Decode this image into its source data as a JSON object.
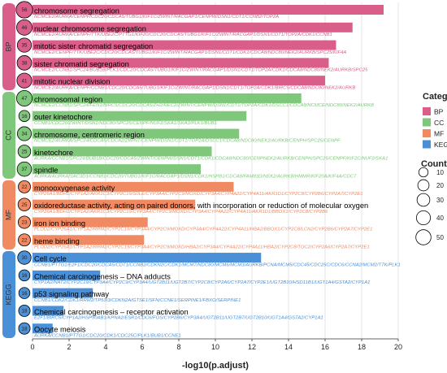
{
  "chart_data": {
    "type": "bar",
    "orientation": "horizontal",
    "xlabel": "-log10(p.adjust)",
    "ylabel": "",
    "xlim": [
      0,
      20
    ],
    "x_ticks": [
      "0",
      "2",
      "4",
      "6",
      "8",
      "10",
      "12",
      "14",
      "16",
      "18",
      "20"
    ],
    "grid": true,
    "legend_position": "right",
    "colors": {
      "BP": "#d95f8a",
      "CC": "#7fc77a",
      "MF": "#f08a63",
      "KEGG": "#4a90d9"
    },
    "categories": [
      {
        "name": "BP",
        "label": "BP",
        "legend_label": "BP",
        "color": "#d95f8a"
      },
      {
        "name": "CC",
        "label": "CC",
        "legend_label": "CC",
        "color": "#7fc77a"
      },
      {
        "name": "MF",
        "label": "MF",
        "legend_label": "MF",
        "color": "#f08a63"
      },
      {
        "name": "KEGG",
        "label": "KEGG",
        "legend_label": "KEGG",
        "color": "#4a90d9"
      }
    ],
    "legend": {
      "category_title": "Category",
      "count_title": "Count",
      "count_values": [
        10,
        20,
        30,
        40,
        50
      ]
    },
    "terms": [
      {
        "category": "BP",
        "term": "chromosome segregation",
        "value": 19.2,
        "count": 56,
        "count_label": "56",
        "genes": "NCMCE2/AURKA/CENPF/CDC20/CDCA5/TUBG1/KIF1C/ZWINT/RACGAP1/CENPW/DSN1/CDT1/CCNB2/TOP2A"
      },
      {
        "category": "BP",
        "term": "nuclear chromosome segregation",
        "value": 17.5,
        "count": 46,
        "count_label": "46",
        "genes": "NCMCE2/AURKA/CENPF/TTK/UBE2C/PTTG1/KIF20/CDC20/CDCA5/TUBG1/KIF1C/ZWINT/RACGAP1/DSN1/CDT1/TOP2A/CDK1/CCNB1"
      },
      {
        "category": "BP",
        "term": "mitotic sister chromatid segregation",
        "value": 16.6,
        "count": 35,
        "count_label": "35",
        "genes": "NCMCE2/CENPF/TTK/UBE2C/CDC20/CDCA5/TUBG1/KIF1C/ZWINT/RACGAP1/DSN1/CDT1/CDK1/CDCA8/NDC80/NEK2/AURKB/SPC25/KIF4A"
      },
      {
        "category": "BP",
        "term": "sister chromatid segregation",
        "value": 16.2,
        "count": 38,
        "count_label": "38",
        "genes": "NCMCE2/CCNB1/SPC24/BUB1B/PLK1/CDC20/CDCA5/TUBG1/KIF1C/ZWINT/RACGAP1/DSN1/CDT1/TOP2A/CDK1/CDCA8/NDC80/NEK2/AURKB/SPC25"
      },
      {
        "category": "BP",
        "term": "mitotic nuclear division",
        "value": 16.0,
        "count": 41,
        "count_label": "41",
        "genes": "NCMCE2/AURKA/CENPF/CCNB1/CDC20/CDCA5/TUBG1/KIF1C/ZWINT/RACGAP1/DSN1/CDT1/TOP2A/CDK1/BIRC5/CDCA8/NDC80/NEK2/AURKB"
      },
      {
        "category": "CC",
        "term": "chromosomal region",
        "value": 14.7,
        "count": 47,
        "count_label": "47",
        "genes": "NCMCE2/CCNB1/SPC24/FEN1/BIRC5/CDC20/CDCA5/ZH2/REC2/ZWINT/CENPW/DSN1/CDT1/TOP2A/CDK1/DSCC1/CDCA8/NCMCE/NDC80/NEK2/AURKB"
      },
      {
        "category": "CC",
        "term": "outer kinetochore",
        "value": 11.7,
        "count": 16,
        "count_label": "16",
        "genes": "CCNB1/CDC20/ZWINT/DSN1/NDC80/SPC25/CENPF/NUF2/SKA1/SKA3/PLK1/BUB1"
      },
      {
        "category": "CC",
        "term": "chromosome, centromeric region",
        "value": 11.3,
        "count": 34,
        "count_label": "34",
        "genes": "NCMCE2/AURKA/SPC24/CDCA5/CDCA2/ZWINT/CENPW/DSN1/CDT1/TOP2A/DSCC1/CDCA8/NDC80/NEK2/AURKB/CENPH/SPC25/CENPF"
      },
      {
        "category": "CC",
        "term": "kinetochore",
        "value": 9.8,
        "count": 25,
        "count_label": "25",
        "genes": "AURKA/CCNB1/SPC24/BUB1B/CDC20/CDCA5/ZWINT/CENPW/DSN1/CDT1/CDK1/CDCA8/NDC80/CENPNEK2/AURKB/CENPH/SPC25/CENPF/KIF2C/NUF2/SKA1"
      },
      {
        "category": "CC",
        "term": "spindle",
        "value": 9.2,
        "count": 37,
        "count_label": "37",
        "genes": "AURKA/AURKA/SAC3D1/CCNB1/CDC20/TUBG1/KIF1C/RACGAP1/DSN1/CDK1/HSPB1/CDCA8/FAM83D/NEK2/AURKB/HMMR/KIF20A/KIF4A/CDC7"
      },
      {
        "category": "MF",
        "term": "monooxygenase activity",
        "value": 11.0,
        "count": 22,
        "count_label": "22",
        "genes": "CYP26A1/BDH1/CYP1A2/AKR1C3/CYP2C19/S0LE/CYP3A4/CYP2C9/MOXD/CYP3A4/CYP4A22/CYP4A11/AKR1D1/CYP2C8/CYP2B6/CYP2A7/CYP2E1"
      },
      {
        "category": "MF",
        "term": "oxidoreductase activity, acting on paired donors, with incorporation or reduction of molecular oxygen",
        "value": 8.9,
        "count": 25,
        "count_label": "25",
        "genes": "CYP26A1/BDH1/CYP1A2/AKR1C3/CYP2C19/CYP3A4/CYP2C9/MOXD/CYP3A4/CYP4A22/CYP4A11/AKR1D1/BBOX1/CYP2C8/CYP2B6"
      },
      {
        "category": "MF",
        "term": "iron ion binding",
        "value": 6.3,
        "count": 23,
        "count_label": "23",
        "genes": "PLOD2/CYP26A1/CYP1A2/RRM2/CYP2C19/CYP3A4/CYP2C9/MOXD/CYP3A4/CYP4A22/CYP4A11/HBA2/BBOX1/CYP2C8/LCN2/CYP2B6/CYP2A7/CYP2E1"
      },
      {
        "category": "MF",
        "term": "heme binding",
        "value": 6.1,
        "count": 22,
        "count_label": "22",
        "genes": "PLOD2/CYP26A1/CYP1A2/RRM2/CYP2C19/CYP3A4/CYP2C9/MOXD/HBA2/CYP3A4/CYP4A22/CYP4A11/HBA2/CYP2C8/TOC2/CYP2A6/CYP2A7/CYP2E1"
      },
      {
        "category": "KEGG",
        "term": "Cell cycle",
        "value": 12.5,
        "count": 30,
        "count_label": "30",
        "genes": "CCNB1/PTTG1/E2F1/CDC20/CDCA5/CDT1/CCNB2/CDKN2C/CDK1/MCM7/NDC80/MCM6/MCM3/AURKB/PCNA/MCM5/CDC45/CDC25C/CDC6/CCNA2/MCM2/TTK/PLK1"
      },
      {
        "category": "KEGG",
        "term": "Chemical carcinogenesis – DNA adducts",
        "value": 3.7,
        "count": 16,
        "count_label": "16",
        "genes": "CYP1A2/NAT2/CYP2C19/CYP3A4/CYP2C9/CYP3A4/UGT2B11/UGT2B7/CYP2C8/CYP2A6/CYP2A7/CYP2E1/UGT2B10/HSD11B1/UGT1A4/GSTA2/CYP1A1"
      },
      {
        "category": "KEGG",
        "term": "p53 signaling pathway",
        "value": 3.3,
        "count": 16,
        "count_label": "16",
        "genes": "CCNB1/CDK2/CDK1/RRM2/TP53I3/CDKN2A/GTSE1/SFN/CCNE1/SERPINE1/FBXO/SERPINE1"
      },
      {
        "category": "KEGG",
        "term": "Chemical carcinogenesis – receptor activation",
        "value": 1.7,
        "count": 18,
        "count_label": "18",
        "genes": "E2F1/BIRC5/CYP1A2/HSP90AB1/KPNA2/ESR1/CDC6/FOS/CYP2B6/CYP3A4/UGT2B11/UGT2B7/UGT2B10/UGT1A4/GSTA2/CYP1A1"
      },
      {
        "category": "KEGG",
        "term": "Oocyte meiosis",
        "value": 1.1,
        "count": 18,
        "count_label": "18",
        "genes": "AURKA/CCNB1/PTTG1/CDC20/CDK1/CDC25C/PLK1/BUB1/CCNE1"
      }
    ]
  }
}
